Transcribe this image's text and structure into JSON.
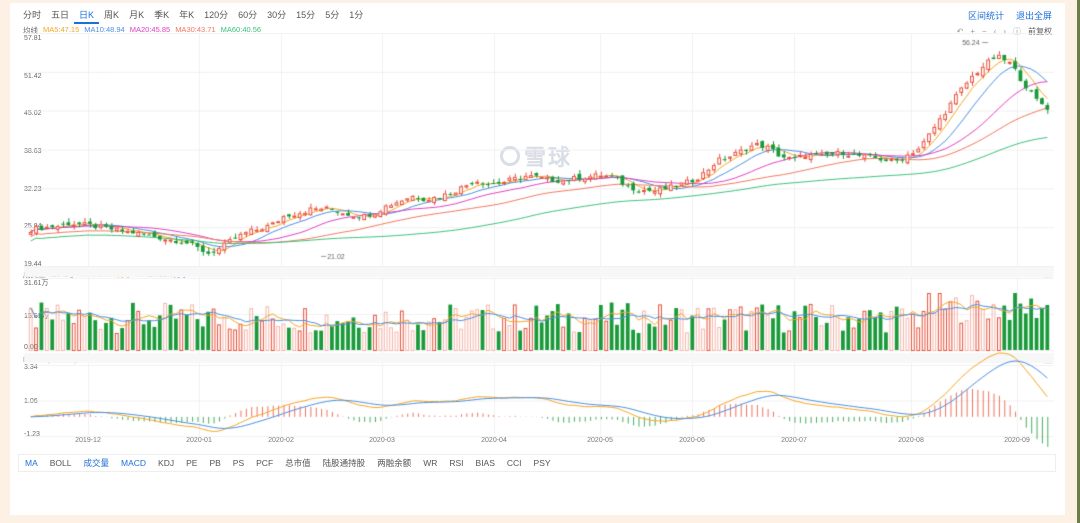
{
  "periods": [
    {
      "label": "分时",
      "active": false
    },
    {
      "label": "五日",
      "active": false
    },
    {
      "label": "日K",
      "active": true
    },
    {
      "label": "周K",
      "active": false
    },
    {
      "label": "月K",
      "active": false
    },
    {
      "label": "季K",
      "active": false
    },
    {
      "label": "年K",
      "active": false
    },
    {
      "label": "120分",
      "active": false
    },
    {
      "label": "60分",
      "active": false
    },
    {
      "label": "30分",
      "active": false
    },
    {
      "label": "15分",
      "active": false
    },
    {
      "label": "5分",
      "active": false
    },
    {
      "label": "1分",
      "active": false
    }
  ],
  "top_actions": {
    "range_stats": "区间统计",
    "exit_fullscreen": "退出全屏"
  },
  "tools": {
    "undo": "↶",
    "zoom_in": "+",
    "zoom_out": "−",
    "prev": "‹",
    "next": "›",
    "info": "ⓘ",
    "adjust": "前复权"
  },
  "watermark": "雪球",
  "price_legend": {
    "label": "均线",
    "items": [
      {
        "text": "MA5:47.15",
        "color": "#f5a623"
      },
      {
        "text": "MA10:48.94",
        "color": "#4a90e2"
      },
      {
        "text": "MA20:45.85",
        "color": "#e040c0"
      },
      {
        "text": "MA30:43.71",
        "color": "#f07860"
      },
      {
        "text": "MA60:40.56",
        "color": "#3cc07a"
      }
    ]
  },
  "volume_legend": {
    "label": "成交量 41542手",
    "items": [
      {
        "text": "MA5:15.45万手",
        "color": "#f5a623"
      },
      {
        "text": "MA10:12.5万手",
        "color": "#4a90e2"
      }
    ]
  },
  "macd_legend": {
    "label": "MACD (12,26,9)",
    "items": [
      {
        "text": "DIF:1.90",
        "color": "#f5a623"
      },
      {
        "text": "DEA:2.52",
        "color": "#4a90e2"
      },
      {
        "text": "MACD:-1.23",
        "color": "#1a9a3a"
      }
    ]
  },
  "indicators": [
    {
      "label": "MA",
      "on": true
    },
    {
      "label": "BOLL",
      "on": false
    },
    {
      "label": "成交量",
      "on": true
    },
    {
      "label": "MACD",
      "on": true
    },
    {
      "label": "KDJ",
      "on": false
    },
    {
      "label": "PE",
      "on": false
    },
    {
      "label": "PB",
      "on": false
    },
    {
      "label": "PS",
      "on": false
    },
    {
      "label": "PCF",
      "on": false
    },
    {
      "label": "总市值",
      "on": false
    },
    {
      "label": "陆股通持股",
      "on": false
    },
    {
      "label": "两融余额",
      "on": false
    },
    {
      "label": "WR",
      "on": false
    },
    {
      "label": "RSI",
      "on": false
    },
    {
      "label": "BIAS",
      "on": false
    },
    {
      "label": "CCI",
      "on": false
    },
    {
      "label": "PSY",
      "on": false
    }
  ],
  "colors": {
    "up": "#e8503a",
    "up_light": "#f5b5aa",
    "down": "#1a9a3a",
    "grid": "#f0f0f0",
    "accent": "#1e6fd9"
  },
  "chart_data": {
    "type": "candlestick",
    "title": "日K",
    "price_axis": {
      "ticks": [
        "57.81",
        "51.42",
        "45.02",
        "38.63",
        "32.23",
        "25.84",
        "19.44"
      ],
      "ylim": [
        19.44,
        57.81
      ]
    },
    "volume_axis": {
      "ticks": [
        "31.61万",
        "15.81万",
        "0.00"
      ]
    },
    "macd_axis": {
      "ticks": [
        "3.34",
        "1.06",
        "-1.23"
      ]
    },
    "x_ticks": [
      {
        "label": "2019-12",
        "x": 88
      },
      {
        "label": "2020-01",
        "x": 199
      },
      {
        "label": "2020-02",
        "x": 281
      },
      {
        "label": "2020-03",
        "x": 382
      },
      {
        "label": "2020-04",
        "x": 494
      },
      {
        "label": "2020-05",
        "x": 600
      },
      {
        "label": "2020-06",
        "x": 692
      },
      {
        "label": "2020-07",
        "x": 794
      },
      {
        "label": "2020-08",
        "x": 911
      },
      {
        "label": "2020-09",
        "x": 1017
      }
    ],
    "annotations": [
      {
        "text": "56.24",
        "type": "max"
      },
      {
        "text": "21.02",
        "type": "min"
      }
    ],
    "price_path": [
      25.5,
      25.8,
      26.0,
      26.5,
      26.3,
      26.0,
      25.6,
      25.3,
      25.0,
      24.6,
      24.2,
      23.8,
      23.5,
      22.5,
      21.5,
      22.5,
      24.0,
      25.0,
      25.6,
      26.3,
      27.8,
      28.2,
      28.8,
      29.0,
      28.6,
      28.0,
      27.6,
      28.2,
      29.4,
      30.2,
      31.0,
      30.5,
      30.8,
      31.5,
      32.5,
      33.6,
      33.0,
      33.2,
      33.8,
      34.3,
      34.0,
      33.6,
      33.5,
      34.0,
      34.2,
      34.5,
      33.8,
      32.5,
      32.0,
      31.8,
      32.2,
      32.8,
      33.5,
      34.8,
      36.8,
      37.5,
      38.5,
      39.5,
      39.0,
      37.5,
      37.0,
      37.8,
      37.5,
      37.8,
      38.2,
      37.6,
      37.4,
      37.0,
      36.6,
      37.8,
      39.0,
      42.0,
      45.0,
      48.0,
      50.5,
      52.5,
      54.0,
      53.0,
      50.0,
      47.0,
      45.5
    ],
    "ma_series": [
      {
        "name": "MA5",
        "final": 47.15,
        "color": "#f5a623"
      },
      {
        "name": "MA10",
        "final": 48.94,
        "color": "#4a90e2"
      },
      {
        "name": "MA20",
        "final": 45.85,
        "color": "#e040c0"
      },
      {
        "name": "MA30",
        "final": 43.71,
        "color": "#f07860"
      },
      {
        "name": "MA60",
        "final": 40.56,
        "color": "#3cc07a"
      }
    ],
    "volume_summary": {
      "last": "41542手",
      "ma5": "15.45万手",
      "ma10": "12.5万手",
      "max": "31.61万"
    },
    "macd_summary": {
      "dif": 1.9,
      "dea": 2.52,
      "macd": -1.23
    }
  }
}
